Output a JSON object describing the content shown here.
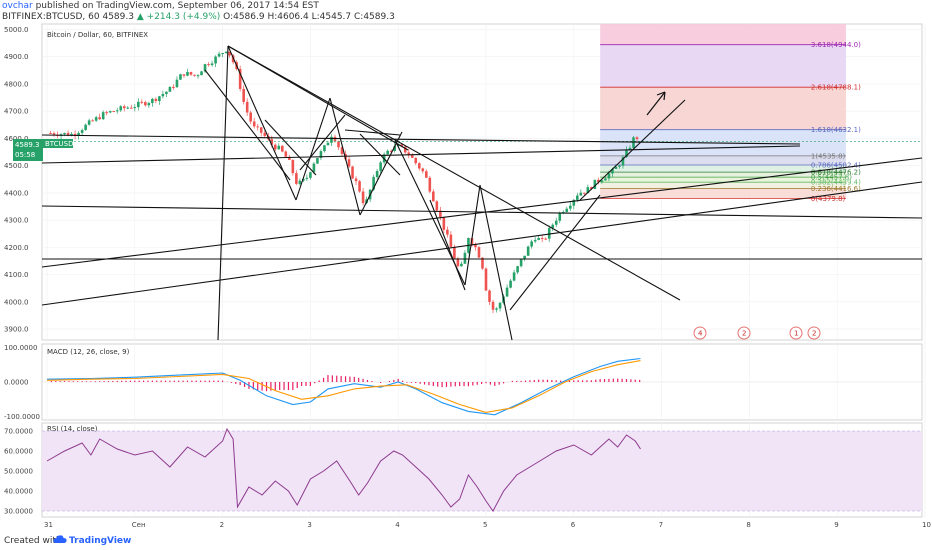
{
  "header": {
    "author": "ovchar",
    "published_text": "published on TradingView.com, September 06, 2017 14:54 EST",
    "symbol_line": "BITFINEX:BTCUSD, 60",
    "last": "4589.3",
    "change": "+214.3 (+4.9%)",
    "ohlc": "O:4586.9 H:4606.4 L:4545.7 C:4589.3"
  },
  "main_legend": "Bitcoin / Dollar, 60, BITFINEX",
  "macd_legend": "MACD (12, 26, close, 9)",
  "rsi_legend": "RSI (14, close)",
  "price_tag": {
    "value": "4589.3",
    "symbol": "BTCUSD",
    "sub": "05:58"
  },
  "x_axis_labels": [
    "31",
    "Сен",
    "2",
    "3",
    "4",
    "5",
    "6",
    "7",
    "8",
    "9",
    "10"
  ],
  "price_axis_labels": [
    "5000.0",
    "4900.0",
    "4800.0",
    "4700.0",
    "4600.0",
    "4500.0",
    "4400.0",
    "4300.0",
    "4200.0",
    "4100.0",
    "4000.0",
    "3900.0"
  ],
  "macd_axis_labels": [
    "100.0000",
    "0.0000",
    "-100.0000"
  ],
  "rsi_axis_labels": [
    "70.0000",
    "60.0000",
    "50.0000",
    "40.0000",
    "30.0000"
  ],
  "fib_labels": [
    "3.618(4944.0)",
    "2.618(4788.1)",
    "1.618(4632.1)",
    "1(4535.8)",
    "0.786(4502.4)",
    "0.618(4476.2)",
    "0.5(4457.8)",
    "0.382(4439.4)",
    "0.236(4416.6)",
    "0(4379.8)"
  ],
  "colors": {
    "up": "#26a269",
    "down": "#ef5350",
    "macd": "#2196f3",
    "signal": "#ff9800",
    "rsi": "#8e3a8e",
    "accent": "#2962ff"
  },
  "event_badges": [
    "4",
    "2",
    "1",
    "2"
  ],
  "footer": {
    "created_with": "Created with",
    "brand": "TradingView"
  },
  "chart_data": {
    "type": "candlestick",
    "title": "Bitcoin / Dollar, 60, BITFINEX",
    "panels": [
      "price",
      "MACD (12, 26, close, 9)",
      "RSI (14, close)"
    ],
    "ylim_price": [
      3860,
      5020
    ],
    "ylim_macd": [
      -110,
      110
    ],
    "ylim_rsi": [
      27,
      74
    ],
    "x_tick_labels": [
      "31",
      "Сен",
      "2",
      "3",
      "4",
      "5",
      "6",
      "7",
      "8",
      "9",
      "10"
    ],
    "close_path": [
      [
        0.0,
        4620
      ],
      [
        0.3,
        4615
      ],
      [
        0.5,
        4660
      ],
      [
        0.65,
        4690
      ],
      [
        0.8,
        4705
      ],
      [
        1.0,
        4720
      ],
      [
        1.2,
        4740
      ],
      [
        1.4,
        4780
      ],
      [
        1.55,
        4840
      ],
      [
        1.7,
        4830
      ],
      [
        1.8,
        4870
      ],
      [
        1.9,
        4890
      ],
      [
        2.05,
        4930
      ],
      [
        2.15,
        4860
      ],
      [
        2.25,
        4720
      ],
      [
        2.35,
        4640
      ],
      [
        2.45,
        4620
      ],
      [
        2.55,
        4580
      ],
      [
        2.65,
        4560
      ],
      [
        2.75,
        4520
      ],
      [
        2.85,
        4430
      ],
      [
        2.95,
        4450
      ],
      [
        3.05,
        4520
      ],
      [
        3.15,
        4560
      ],
      [
        3.25,
        4620
      ],
      [
        3.35,
        4550
      ],
      [
        3.45,
        4480
      ],
      [
        3.55,
        4420
      ],
      [
        3.62,
        4350
      ],
      [
        3.7,
        4430
      ],
      [
        3.8,
        4520
      ],
      [
        3.9,
        4560
      ],
      [
        4.0,
        4570
      ],
      [
        4.1,
        4550
      ],
      [
        4.2,
        4510
      ],
      [
        4.3,
        4470
      ],
      [
        4.4,
        4380
      ],
      [
        4.5,
        4290
      ],
      [
        4.6,
        4200
      ],
      [
        4.7,
        4110
      ],
      [
        4.75,
        4160
      ],
      [
        4.8,
        4240
      ],
      [
        4.88,
        4200
      ],
      [
        4.95,
        4150
      ],
      [
        5.0,
        4050
      ],
      [
        5.05,
        3990
      ],
      [
        5.1,
        3960
      ],
      [
        5.15,
        3990
      ],
      [
        5.25,
        4060
      ],
      [
        5.35,
        4120
      ],
      [
        5.45,
        4180
      ],
      [
        5.55,
        4240
      ],
      [
        5.65,
        4220
      ],
      [
        5.75,
        4280
      ],
      [
        5.85,
        4330
      ],
      [
        5.95,
        4360
      ],
      [
        6.05,
        4400
      ],
      [
        6.15,
        4410
      ],
      [
        6.25,
        4440
      ],
      [
        6.35,
        4460
      ],
      [
        6.45,
        4480
      ],
      [
        6.55,
        4520
      ],
      [
        6.62,
        4560
      ],
      [
        6.7,
        4610
      ],
      [
        6.76,
        4589
      ]
    ],
    "macd_path": [
      [
        0.0,
        8
      ],
      [
        0.5,
        10
      ],
      [
        1.0,
        14
      ],
      [
        1.5,
        20
      ],
      [
        2.0,
        26
      ],
      [
        2.2,
        5
      ],
      [
        2.5,
        -40
      ],
      [
        2.8,
        -65
      ],
      [
        3.0,
        -58
      ],
      [
        3.2,
        -20
      ],
      [
        3.5,
        -5
      ],
      [
        3.8,
        -15
      ],
      [
        4.0,
        0
      ],
      [
        4.2,
        -20
      ],
      [
        4.5,
        -60
      ],
      [
        4.8,
        -85
      ],
      [
        5.1,
        -95
      ],
      [
        5.4,
        -60
      ],
      [
        5.7,
        -20
      ],
      [
        6.0,
        15
      ],
      [
        6.3,
        45
      ],
      [
        6.5,
        60
      ],
      [
        6.76,
        68
      ]
    ],
    "signal_path": [
      [
        0.0,
        5
      ],
      [
        0.5,
        8
      ],
      [
        1.0,
        10
      ],
      [
        1.5,
        16
      ],
      [
        2.0,
        22
      ],
      [
        2.3,
        10
      ],
      [
        2.6,
        -25
      ],
      [
        2.9,
        -50
      ],
      [
        3.2,
        -40
      ],
      [
        3.5,
        -20
      ],
      [
        3.8,
        -12
      ],
      [
        4.1,
        -8
      ],
      [
        4.4,
        -35
      ],
      [
        4.7,
        -65
      ],
      [
        5.0,
        -88
      ],
      [
        5.3,
        -75
      ],
      [
        5.6,
        -40
      ],
      [
        5.9,
        0
      ],
      [
        6.2,
        30
      ],
      [
        6.5,
        50
      ],
      [
        6.76,
        62
      ]
    ],
    "rsi_path": [
      [
        0.0,
        55
      ],
      [
        0.2,
        60
      ],
      [
        0.4,
        64
      ],
      [
        0.5,
        58
      ],
      [
        0.6,
        66
      ],
      [
        0.8,
        61
      ],
      [
        1.0,
        58
      ],
      [
        1.2,
        60
      ],
      [
        1.4,
        52
      ],
      [
        1.6,
        62
      ],
      [
        1.8,
        57
      ],
      [
        2.0,
        65
      ],
      [
        2.05,
        71
      ],
      [
        2.12,
        66
      ],
      [
        2.17,
        32
      ],
      [
        2.3,
        42
      ],
      [
        2.45,
        38
      ],
      [
        2.6,
        45
      ],
      [
        2.75,
        40
      ],
      [
        2.85,
        33
      ],
      [
        3.0,
        46
      ],
      [
        3.15,
        50
      ],
      [
        3.3,
        55
      ],
      [
        3.45,
        45
      ],
      [
        3.55,
        38
      ],
      [
        3.65,
        44
      ],
      [
        3.8,
        55
      ],
      [
        3.95,
        60
      ],
      [
        4.05,
        58
      ],
      [
        4.2,
        52
      ],
      [
        4.35,
        46
      ],
      [
        4.5,
        38
      ],
      [
        4.6,
        32
      ],
      [
        4.7,
        36
      ],
      [
        4.8,
        48
      ],
      [
        4.9,
        42
      ],
      [
        5.0,
        35
      ],
      [
        5.08,
        30
      ],
      [
        5.2,
        40
      ],
      [
        5.35,
        48
      ],
      [
        5.5,
        52
      ],
      [
        5.65,
        56
      ],
      [
        5.8,
        60
      ],
      [
        6.0,
        63
      ],
      [
        6.2,
        58
      ],
      [
        6.4,
        66
      ],
      [
        6.5,
        62
      ],
      [
        6.6,
        68
      ],
      [
        6.7,
        65
      ],
      [
        6.76,
        61
      ]
    ],
    "fib_levels": [
      {
        "ratio": 3.618,
        "price": 4944.0
      },
      {
        "ratio": 2.618,
        "price": 4788.1
      },
      {
        "ratio": 1.618,
        "price": 4632.1
      },
      {
        "ratio": 1.0,
        "price": 4535.8
      },
      {
        "ratio": 0.786,
        "price": 4502.4
      },
      {
        "ratio": 0.618,
        "price": 4476.2
      },
      {
        "ratio": 0.5,
        "price": 4457.8
      },
      {
        "ratio": 0.382,
        "price": 4439.4
      },
      {
        "ratio": 0.236,
        "price": 4416.6
      },
      {
        "ratio": 0.0,
        "price": 4379.8
      }
    ],
    "last_price": 4589.3,
    "rsi_band": [
      30,
      70
    ]
  }
}
